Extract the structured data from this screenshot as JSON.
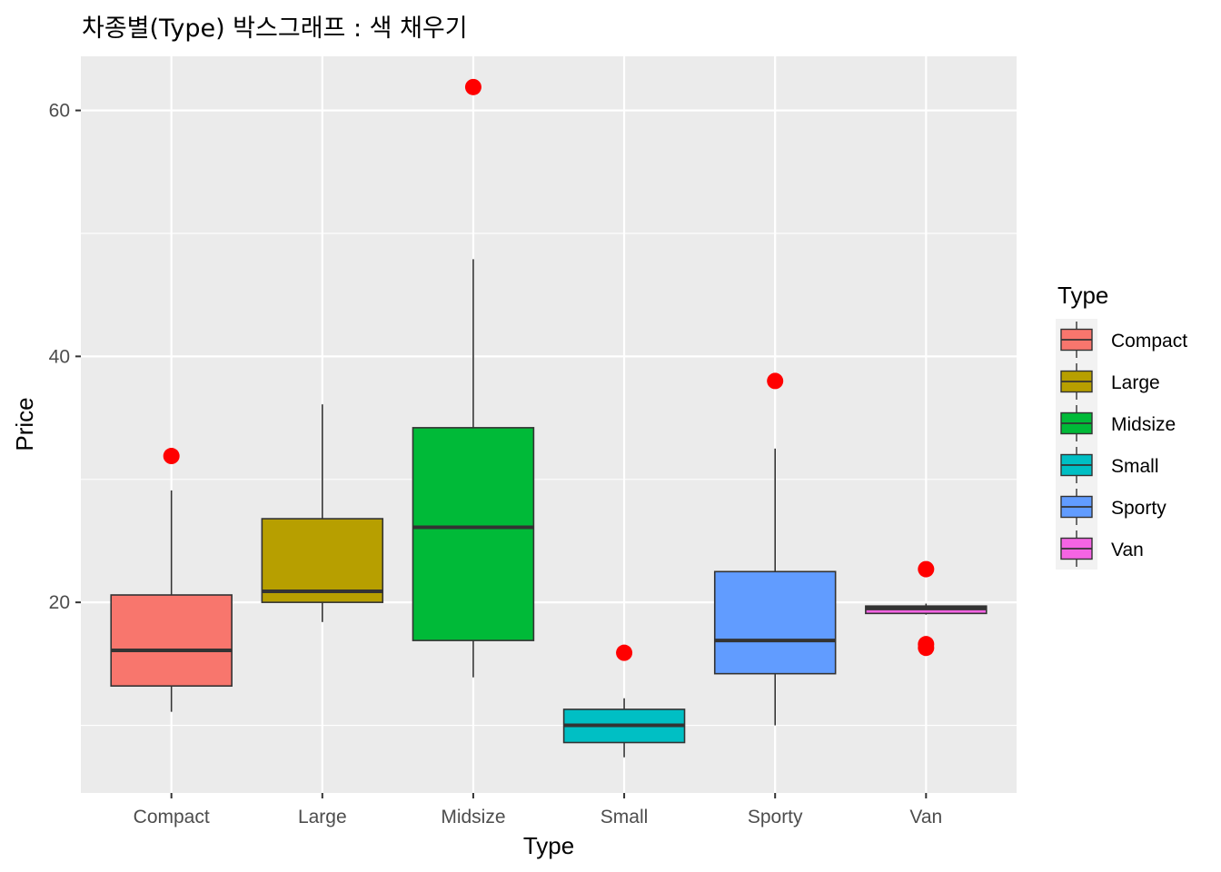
{
  "chart_data": {
    "type": "boxplot",
    "title": "차종별(Type) 박스그래프 : 색 채우기",
    "xlabel": "Type",
    "ylabel": "Price",
    "ylim": [
      4.5,
      64.4
    ],
    "yticks": [
      20,
      40,
      60
    ],
    "grid": true,
    "legend": {
      "title": "Type",
      "position": "right"
    },
    "categories": [
      "Compact",
      "Large",
      "Midsize",
      "Small",
      "Sporty",
      "Van"
    ],
    "colors": [
      "#F8766D",
      "#B79F00",
      "#00BA38",
      "#00BFC4",
      "#619CFF",
      "#F564E3"
    ],
    "outlier_color": "#FF0000",
    "boxes": [
      {
        "category": "Compact",
        "whisker_low": 11.1,
        "q1": 13.2,
        "median": 16.1,
        "q3": 20.6,
        "whisker_high": 29.1,
        "outliers": [
          31.9
        ]
      },
      {
        "category": "Large",
        "whisker_low": 18.4,
        "q1": 20.0,
        "median": 20.9,
        "q3": 26.8,
        "whisker_high": 36.1,
        "outliers": []
      },
      {
        "category": "Midsize",
        "whisker_low": 13.9,
        "q1": 16.9,
        "median": 26.1,
        "q3": 34.2,
        "whisker_high": 47.9,
        "outliers": [
          61.9
        ]
      },
      {
        "category": "Small",
        "whisker_low": 7.4,
        "q1": 8.6,
        "median": 10.0,
        "q3": 11.3,
        "whisker_high": 12.2,
        "outliers": [
          15.9
        ]
      },
      {
        "category": "Sporty",
        "whisker_low": 10.0,
        "q1": 14.2,
        "median": 16.9,
        "q3": 22.5,
        "whisker_high": 32.5,
        "outliers": [
          38.0
        ]
      },
      {
        "category": "Van",
        "whisker_low": 19.0,
        "q1": 19.1,
        "median": 19.5,
        "q3": 19.7,
        "whisker_high": 19.9,
        "outliers": [
          22.7,
          16.3,
          16.6
        ]
      }
    ]
  }
}
